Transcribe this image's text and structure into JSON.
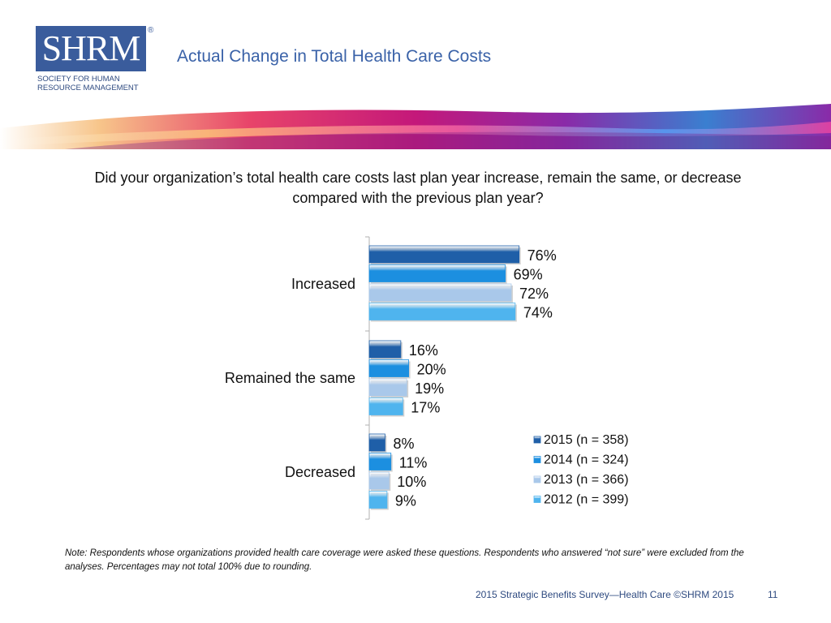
{
  "logo": {
    "letters": "SHRM",
    "registered": "®",
    "tagline_line1": "SOCIETY FOR HUMAN",
    "tagline_line2": "RESOURCE MANAGEMENT"
  },
  "slide_title": "Actual Change in Total Health Care Costs",
  "question": "Did your organization’s total health care costs last plan year increase, remain the same, or decrease compared with the previous plan year?",
  "note": "Note: Respondents whose organizations provided health care coverage were asked these questions. Respondents who answered “not sure” were excluded from the analyses. Percentages may not total 100% due to rounding.",
  "footer": "2015 Strategic Benefits Survey—Health Care ©SHRM 2015",
  "page_number": "11",
  "chart_data": {
    "type": "bar",
    "orientation": "horizontal",
    "categories": [
      "Increased",
      "Remained the same",
      "Decreased"
    ],
    "series": [
      {
        "name": "2015 (n = 358)",
        "values": [
          76,
          16,
          8
        ],
        "color": "#1f5fa8"
      },
      {
        "name": "2014 (n = 324)",
        "values": [
          69,
          20,
          11
        ],
        "color": "#1c8fe0"
      },
      {
        "name": "2013 (n = 366)",
        "values": [
          72,
          19,
          10
        ],
        "color": "#a9c8ea"
      },
      {
        "name": "2012 (n = 399)",
        "values": [
          74,
          17,
          9
        ],
        "color": "#4fb4ee"
      }
    ],
    "value_suffix": "%",
    "xlim": [
      0,
      100
    ],
    "grid": false,
    "legend_position": "bottom-right"
  }
}
